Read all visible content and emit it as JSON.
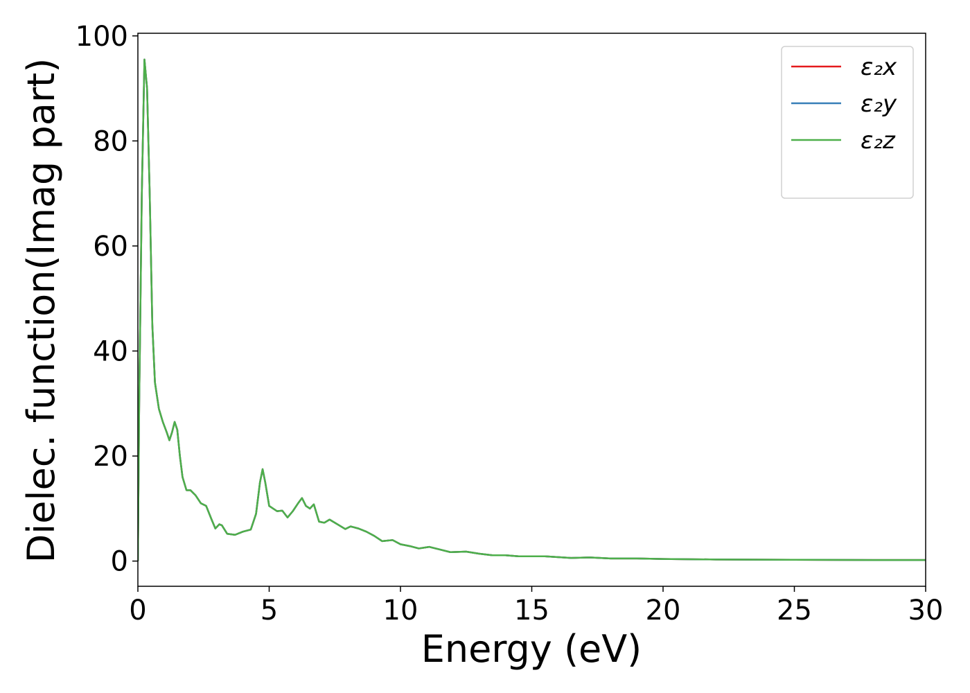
{
  "chart_data": {
    "type": "line",
    "xlabel": "Energy (eV)",
    "ylabel": "Dielec. function(Imag part)",
    "x": [
      0,
      0.05,
      0.15,
      0.25,
      0.35,
      0.45,
      0.55,
      0.65,
      0.8,
      0.95,
      1.1,
      1.2,
      1.3,
      1.4,
      1.5,
      1.6,
      1.7,
      1.85,
      2.0,
      2.2,
      2.4,
      2.6,
      2.8,
      2.95,
      3.1,
      3.2,
      3.4,
      3.7,
      4.0,
      4.3,
      4.5,
      4.65,
      4.75,
      4.85,
      5.0,
      5.3,
      5.5,
      5.7,
      5.9,
      6.1,
      6.25,
      6.4,
      6.55,
      6.7,
      6.9,
      7.1,
      7.3,
      7.6,
      7.9,
      8.1,
      8.4,
      8.7,
      9.0,
      9.3,
      9.7,
      10.0,
      10.4,
      10.7,
      11.1,
      11.5,
      11.9,
      12.5,
      13.0,
      13.5,
      14.0,
      14.5,
      15.5,
      16.5,
      17.2,
      18.0,
      19.0,
      20.0,
      22,
      25,
      28,
      30
    ],
    "series": [
      {
        "name": "ε₂x",
        "color": "#e41a1c",
        "values": [
          0,
          30,
          70,
          95.5,
          90,
          70,
          45,
          34,
          29,
          26.5,
          24.5,
          23,
          24.5,
          26.5,
          25,
          20,
          16,
          13.5,
          13.5,
          12.5,
          11,
          10.5,
          8,
          6.2,
          7,
          6.8,
          5.2,
          5,
          5.6,
          6,
          9,
          15,
          17.5,
          15,
          10.5,
          9.5,
          9.6,
          8.3,
          9.5,
          11,
          12,
          10.5,
          10,
          10.8,
          7.5,
          7.3,
          7.9,
          7,
          6.1,
          6.6,
          6.2,
          5.6,
          4.8,
          3.8,
          4,
          3.2,
          2.8,
          2.4,
          2.7,
          2.2,
          1.7,
          1.8,
          1.4,
          1.1,
          1.1,
          0.9,
          0.9,
          0.6,
          0.7,
          0.5,
          0.5,
          0.4,
          0.3,
          0.25,
          0.2,
          0.2
        ]
      },
      {
        "name": "ε₂y",
        "color": "#377eb8",
        "values": [
          0,
          30,
          70,
          95.5,
          90,
          70,
          45,
          34,
          29,
          26.5,
          24.5,
          23,
          24.5,
          26.5,
          25,
          20,
          16,
          13.5,
          13.5,
          12.5,
          11,
          10.5,
          8,
          6.2,
          7,
          6.8,
          5.2,
          5,
          5.6,
          6,
          9,
          15,
          17.5,
          15,
          10.5,
          9.5,
          9.6,
          8.3,
          9.5,
          11,
          12,
          10.5,
          10,
          10.8,
          7.5,
          7.3,
          7.9,
          7,
          6.1,
          6.6,
          6.2,
          5.6,
          4.8,
          3.8,
          4,
          3.2,
          2.8,
          2.4,
          2.7,
          2.2,
          1.7,
          1.8,
          1.4,
          1.1,
          1.1,
          0.9,
          0.9,
          0.6,
          0.7,
          0.5,
          0.5,
          0.4,
          0.3,
          0.25,
          0.2,
          0.2
        ]
      },
      {
        "name": "ε₂z",
        "color": "#4daf4a",
        "values": [
          0,
          30,
          70,
          95.5,
          90,
          70,
          45,
          34,
          29,
          26.5,
          24.5,
          23,
          24.5,
          26.5,
          25,
          20,
          16,
          13.5,
          13.5,
          12.5,
          11,
          10.5,
          8,
          6.2,
          7,
          6.8,
          5.2,
          5,
          5.6,
          6,
          9,
          15,
          17.5,
          15,
          10.5,
          9.5,
          9.6,
          8.3,
          9.5,
          11,
          12,
          10.5,
          10,
          10.8,
          7.5,
          7.3,
          7.9,
          7,
          6.1,
          6.6,
          6.2,
          5.6,
          4.8,
          3.8,
          4,
          3.2,
          2.8,
          2.4,
          2.7,
          2.2,
          1.7,
          1.8,
          1.4,
          1.1,
          1.1,
          0.9,
          0.9,
          0.6,
          0.7,
          0.5,
          0.5,
          0.4,
          0.3,
          0.25,
          0.2,
          0.2
        ]
      }
    ],
    "xlim": [
      0,
      30
    ],
    "xticks": [
      0,
      5,
      10,
      15,
      20,
      25,
      30
    ],
    "ylim": [
      -4.8,
      100.5
    ],
    "yticks": [
      0,
      20,
      40,
      60,
      80,
      100
    ],
    "grid": false,
    "legend": "upper right"
  }
}
